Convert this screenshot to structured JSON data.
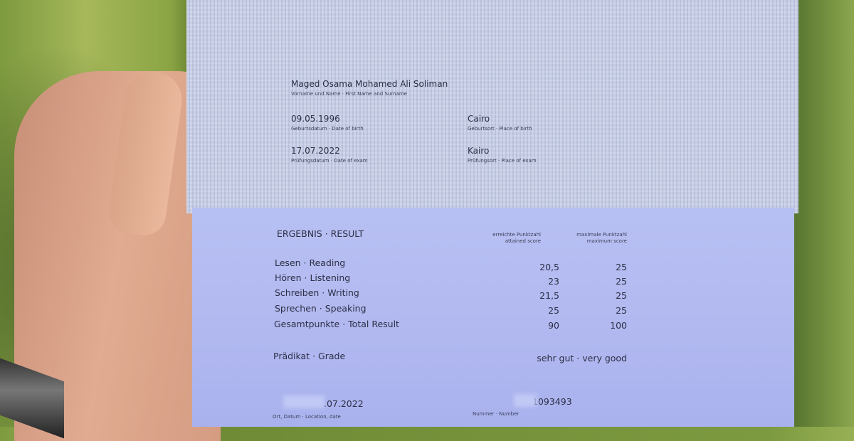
{
  "personal": {
    "name": "Maged Osama Mohamed Ali Soliman",
    "name_label": "Vorname und Name · First Name and Surname",
    "dob": "09.05.1996",
    "dob_label": "Geburtsdatum · Date of birth",
    "pob": "Cairo",
    "pob_label": "Geburtsort · Place of birth",
    "exam_date": "17.07.2022",
    "exam_date_label": "Prüfungsdatum · Date of exam",
    "exam_place": "Kairo",
    "exam_place_label": "Prüfungsort · Place of exam"
  },
  "result": {
    "heading": "ERGEBNIS · RESULT",
    "col_attained": [
      "erreichte Punktzahl",
      "attained score"
    ],
    "col_max": [
      "maximale Punktzahl",
      "maximum score"
    ],
    "rows": [
      {
        "label": "Lesen · Reading",
        "attained": "20,5",
        "max": "25"
      },
      {
        "label": "Hören · Listening",
        "attained": "23",
        "max": "25"
      },
      {
        "label": "Schreiben · Writing",
        "attained": "21,5",
        "max": "25"
      },
      {
        "label": "Sprechen · Speaking",
        "attained": "25",
        "max": "25"
      },
      {
        "label": "Gesamtpunkte · Total Result",
        "attained": "90",
        "max": "100"
      }
    ],
    "grade_label": "Prädikat · Grade",
    "grade_value": "sehr gut · very good"
  },
  "footer": {
    "date": ".07.2022",
    "date_label": "Ort, Datum · Location, date",
    "number": "1093493",
    "number_label": "Nummer · Number"
  }
}
